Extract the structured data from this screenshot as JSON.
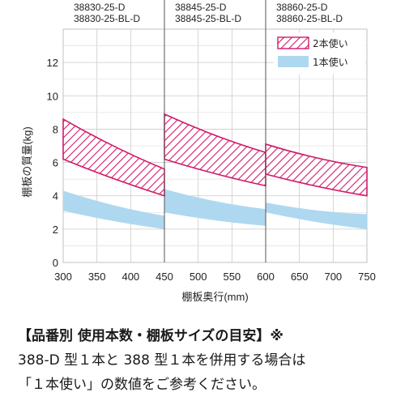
{
  "chart_data": {
    "type": "area",
    "xlabel": "棚板奥行(mm)",
    "ylabel": "棚板の質量(kg)",
    "xlim": [
      300,
      750
    ],
    "ylim": [
      0,
      14
    ],
    "x_ticks": [
      300,
      350,
      400,
      450,
      500,
      550,
      600,
      650,
      700,
      750
    ],
    "y_ticks": [
      0,
      2,
      4,
      6,
      8,
      10,
      12
    ],
    "grid": true,
    "legend_position": "top-right",
    "legend": [
      {
        "label": "2本使い",
        "style": "hatched",
        "color": "#d11a6b"
      },
      {
        "label": "1本使い",
        "style": "solid",
        "color": "#aed8ef"
      }
    ],
    "models": [
      {
        "names": [
          "38830-25-D",
          "38830-25-BL-D"
        ],
        "x_range": [
          300,
          450
        ]
      },
      {
        "names": [
          "38845-25-D",
          "38845-25-BL-D"
        ],
        "x_range": [
          450,
          600
        ]
      },
      {
        "names": [
          "38860-25-D",
          "38860-25-BL-D"
        ],
        "x_range": [
          600,
          750
        ]
      }
    ],
    "series": [
      {
        "name": "2本使い",
        "segment": 1,
        "x": [
          300,
          450
        ],
        "upper": [
          8.6,
          5.6
        ],
        "lower": [
          6.2,
          4.0
        ]
      },
      {
        "name": "2本使い",
        "segment": 2,
        "x": [
          450,
          600
        ],
        "upper": [
          8.9,
          6.6
        ],
        "lower": [
          6.2,
          4.6
        ]
      },
      {
        "name": "2本使い",
        "segment": 3,
        "x": [
          600,
          750
        ],
        "upper": [
          7.1,
          5.7
        ],
        "lower": [
          5.3,
          4.0
        ]
      },
      {
        "name": "1本使い",
        "segment": 1,
        "x": [
          300,
          450
        ],
        "upper": [
          4.3,
          2.8
        ],
        "lower": [
          3.1,
          2.0
        ]
      },
      {
        "name": "1本使い",
        "segment": 2,
        "x": [
          450,
          600
        ],
        "upper": [
          4.4,
          3.2
        ],
        "lower": [
          3.0,
          2.2
        ]
      },
      {
        "name": "1本使い",
        "segment": 3,
        "x": [
          600,
          750
        ],
        "upper": [
          3.6,
          2.9
        ],
        "lower": [
          3.0,
          2.0
        ]
      }
    ]
  },
  "note": {
    "heading": "【品番別 使用本数・棚板サイズの目安】※",
    "line2": "388-D 型１本と 388 型１本を併用する場合は",
    "line3": "「１本使い」の数値をご参考ください。"
  }
}
